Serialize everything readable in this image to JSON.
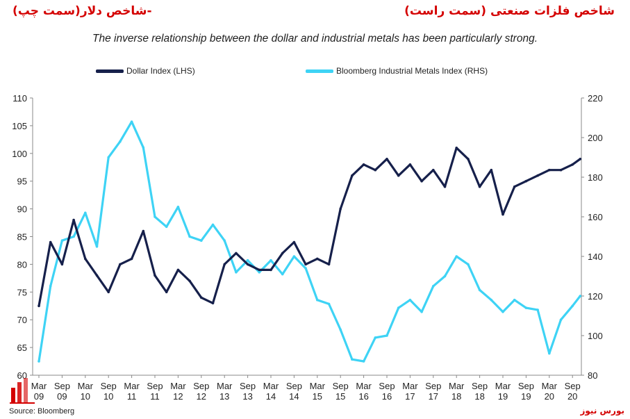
{
  "header": {
    "fa_left": "-شاخص دلار(سمت چپ)",
    "fa_right": "شاخص فلزات صنعتی (سمت راست)",
    "subtitle": "The inverse relationship between the dollar and industrial metals has been particularly strong."
  },
  "colors": {
    "fa_left": "#d40000",
    "fa_right": "#d40000",
    "dollar": "#16204b",
    "metals": "#3ed3f5"
  },
  "footer": {
    "source": "Source: Bloomberg",
    "watermark": "بورس نیوز"
  },
  "chart_data": {
    "type": "line",
    "legend_position": "top",
    "grid": false,
    "x_ticks": [
      "Mar\n09",
      "Sep\n09",
      "Mar\n10",
      "Sep\n10",
      "Mar\n11",
      "Sep\n11",
      "Mar\n12",
      "Sep\n12",
      "Mar\n13",
      "Sep\n13",
      "Mar\n14",
      "Sep\n14",
      "Mar\n15",
      "Sep\n15",
      "Mar\n16",
      "Sep\n16",
      "Mar\n17",
      "Sep\n17",
      "Mar\n18",
      "Sep\n18",
      "Mar\n19",
      "Sep\n19",
      "Mar\n20",
      "Sep\n20"
    ],
    "x": [
      "2009-03",
      "2009-06",
      "2009-09",
      "2009-12",
      "2010-03",
      "2010-06",
      "2010-09",
      "2010-12",
      "2011-03",
      "2011-06",
      "2011-09",
      "2011-12",
      "2012-03",
      "2012-06",
      "2012-09",
      "2012-12",
      "2013-03",
      "2013-06",
      "2013-09",
      "2013-12",
      "2014-03",
      "2014-06",
      "2014-09",
      "2014-12",
      "2015-03",
      "2015-06",
      "2015-09",
      "2015-12",
      "2016-03",
      "2016-06",
      "2016-09",
      "2016-12",
      "2017-03",
      "2017-06",
      "2017-09",
      "2017-12",
      "2018-03",
      "2018-06",
      "2018-09",
      "2018-12",
      "2019-03",
      "2019-06",
      "2019-09",
      "2019-12",
      "2020-03",
      "2020-06",
      "2020-09",
      "2020-11"
    ],
    "left_axis": {
      "ylim": [
        60,
        110
      ],
      "ticks": [
        60,
        65,
        70,
        75,
        80,
        85,
        90,
        95,
        100,
        105,
        110
      ]
    },
    "right_axis": {
      "ylim": [
        80,
        220
      ],
      "ticks": [
        80,
        100,
        120,
        140,
        160,
        180,
        200,
        220
      ]
    },
    "series": [
      {
        "name": "Dollar Index (LHS)",
        "axis": "left",
        "values": [
          72.5,
          84,
          80,
          88,
          81,
          78,
          75,
          80,
          81,
          86,
          78,
          75,
          79,
          77,
          74,
          73,
          80,
          82,
          80,
          79,
          79,
          82,
          84,
          80,
          81,
          80,
          90,
          96,
          98,
          97,
          99,
          96,
          98,
          95,
          97,
          94,
          101,
          99,
          94,
          97,
          89,
          94,
          95,
          96,
          97,
          97,
          98,
          99
        ]
      },
      {
        "name": "Bloomberg Industrial Metals Index (RHS)",
        "axis": "right",
        "values": [
          87,
          125,
          148,
          150,
          162,
          145,
          190,
          198,
          208,
          195,
          160,
          155,
          165,
          150,
          148,
          156,
          148,
          132,
          138,
          132,
          138,
          131,
          140,
          134,
          118,
          116,
          103,
          88,
          87,
          99,
          100,
          114,
          118,
          112,
          125,
          130,
          140,
          136,
          123,
          118,
          112,
          118,
          114,
          113,
          91,
          108,
          115,
          120
        ]
      }
    ]
  }
}
